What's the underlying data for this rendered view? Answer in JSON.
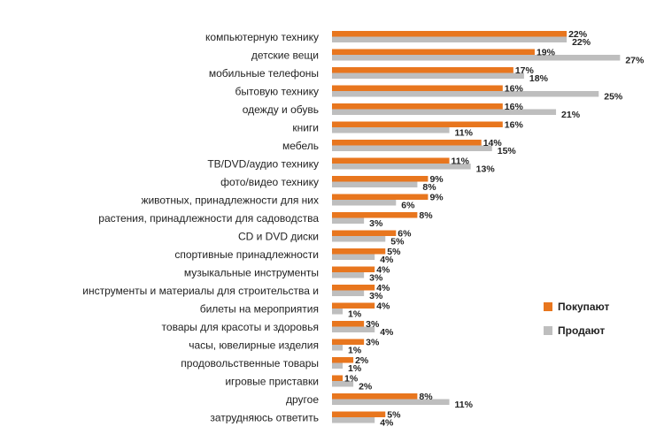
{
  "chart_data": {
    "type": "bar",
    "orientation": "horizontal",
    "categories": [
      "компьютерную технику",
      "детские вещи",
      "мобильные телефоны",
      "бытовую технику",
      "одежду и обувь",
      "книги",
      "мебель",
      "ТВ/DVD/аудио технику",
      "фото/видео технику",
      "животных, принадлежности для них",
      "растения, принадлежности для садоводства",
      "CD и DVD диски",
      "спортивные принадлежности",
      "музыкальные инструменты",
      "инструменты и материалы для строительства и",
      "билеты на мероприятия",
      "товары для красоты и здоровья",
      "часы, ювелирные изделия",
      "продовольственные товары",
      "игровые приставки",
      "другое",
      "затрудняюсь ответить"
    ],
    "series": [
      {
        "name": "Покупают",
        "color": "#E8761E",
        "values": [
          22,
          19,
          17,
          16,
          16,
          16,
          14,
          11,
          9,
          9,
          8,
          6,
          5,
          4,
          4,
          4,
          3,
          3,
          2,
          1,
          8,
          5
        ],
        "labels": [
          "22%",
          "19%",
          "17%",
          "16%",
          "16%",
          "16%",
          "14%",
          "11%",
          "9%",
          "9%",
          "8%",
          "6%",
          "5%",
          "4%",
          "4%",
          "4%",
          "3%",
          "3%",
          "2%",
          "1%",
          "8%",
          "5%"
        ]
      },
      {
        "name": "Продают",
        "color": "#BEBEBE",
        "values": [
          22,
          27,
          18,
          25,
          21,
          11,
          15,
          13,
          8,
          6,
          3,
          5,
          4,
          3,
          3,
          1,
          4,
          1,
          1,
          2,
          11,
          4
        ],
        "labels": [
          "22%",
          "27%",
          "18%",
          "25%",
          "21%",
          "11%",
          "15%",
          "13%",
          "8%",
          "6%",
          "3%",
          "5%",
          "4%",
          "3%",
          "3%",
          "1%",
          "4%",
          "1%",
          "1%",
          "2%",
          "11%",
          "4%"
        ]
      }
    ],
    "legend_position": "right",
    "grid": false
  }
}
